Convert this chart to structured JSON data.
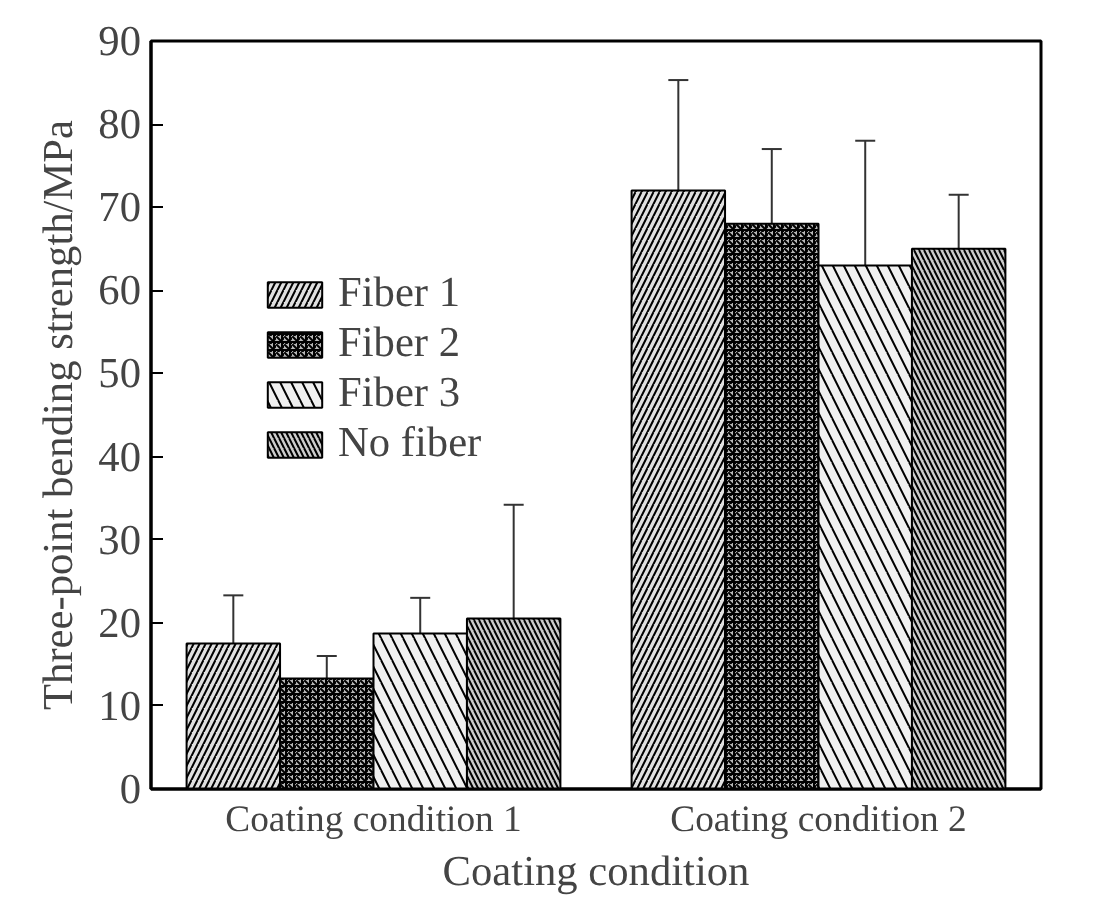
{
  "chart_data": {
    "type": "bar",
    "ylabel": "Three-point bending strength/MPa",
    "xlabel": "Coating condition",
    "categories": [
      "Coating condition 1",
      "Coating condition 2"
    ],
    "series": [
      {
        "name": "Fiber 1",
        "color": "#e0e0e0",
        "values": [
          17.5,
          72
        ],
        "errors": [
          [
            11.8,
            23.3
          ],
          [
            58.8,
            85.3
          ]
        ]
      },
      {
        "name": "Fiber 2",
        "color": "#b8b8b8",
        "values": [
          13.3,
          68
        ],
        "errors": [
          [
            11,
            16
          ],
          [
            59,
            77
          ]
        ]
      },
      {
        "name": "Fiber 3",
        "color": "#f0f0f0",
        "values": [
          18.7,
          63
        ],
        "errors": [
          [
            14.2,
            23
          ],
          [
            47.5,
            78
          ]
        ]
      },
      {
        "name": "No fiber",
        "color": "#cccccc",
        "values": [
          20.5,
          65
        ],
        "errors": [
          [
            7,
            34.2
          ],
          [
            59,
            71.5
          ]
        ]
      }
    ],
    "ylim": [
      0,
      90
    ],
    "yticks": [
      0,
      10,
      20,
      30,
      40,
      50,
      60,
      70,
      80,
      90
    ],
    "grid": false,
    "legend": "top left"
  }
}
